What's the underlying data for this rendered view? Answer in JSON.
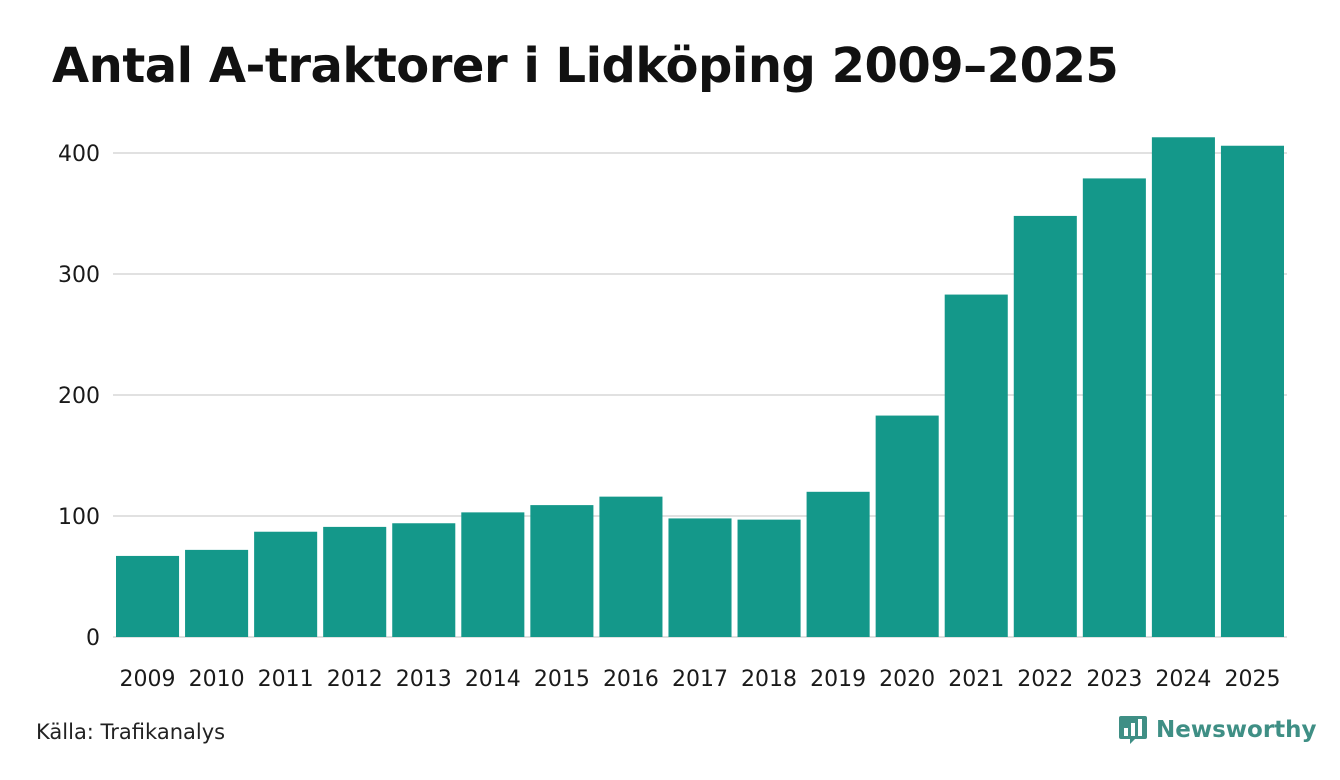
{
  "title": "Antal A-traktorer i Lidköping 2009–2025",
  "source": "Källa: Trafikanalys",
  "brand": {
    "name": "Newsworthy",
    "icon": "newsworthy-logo-icon"
  },
  "colors": {
    "bar": "#14988a",
    "grid": "#e1e1e1",
    "text": "#1a1a1a",
    "brand": "#3f8f85"
  },
  "chart_data": {
    "type": "bar",
    "title": "Antal A-traktorer i Lidköping 2009–2025",
    "xlabel": "",
    "ylabel": "",
    "categories": [
      "2009",
      "2010",
      "2011",
      "2012",
      "2013",
      "2014",
      "2015",
      "2016",
      "2017",
      "2018",
      "2019",
      "2020",
      "2021",
      "2022",
      "2023",
      "2024",
      "2025"
    ],
    "values": [
      67,
      72,
      87,
      91,
      94,
      103,
      109,
      116,
      98,
      97,
      120,
      183,
      283,
      348,
      379,
      413,
      406
    ],
    "y_ticks": [
      "0",
      "100",
      "200",
      "300",
      "400"
    ],
    "ylim": [
      0,
      400
    ],
    "grid": true
  }
}
